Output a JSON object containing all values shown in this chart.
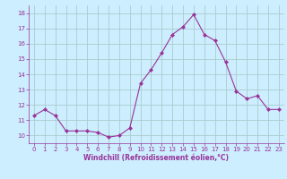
{
  "x": [
    0,
    1,
    2,
    3,
    4,
    5,
    6,
    7,
    8,
    9,
    10,
    11,
    12,
    13,
    14,
    15,
    16,
    17,
    18,
    19,
    20,
    21,
    22,
    23
  ],
  "y": [
    11.3,
    11.7,
    11.3,
    10.3,
    10.3,
    10.3,
    10.2,
    9.9,
    10.0,
    10.5,
    13.4,
    14.3,
    15.4,
    16.6,
    17.1,
    17.9,
    16.6,
    16.2,
    14.8,
    12.9,
    12.4,
    12.6,
    11.7,
    11.7
  ],
  "line_color": "#993399",
  "marker": "D",
  "marker_size": 2,
  "bg_color": "#cceeff",
  "grid_color": "#aacccc",
  "xlabel": "Windchill (Refroidissement éolien,°C)",
  "xlabel_color": "#993399",
  "tick_color": "#993399",
  "label_fontsize": 5.0,
  "xlabel_fontsize": 5.5,
  "ylim": [
    9.5,
    18.5
  ],
  "xlim": [
    -0.5,
    23.5
  ],
  "yticks": [
    10,
    11,
    12,
    13,
    14,
    15,
    16,
    17,
    18
  ],
  "xticks": [
    0,
    1,
    2,
    3,
    4,
    5,
    6,
    7,
    8,
    9,
    10,
    11,
    12,
    13,
    14,
    15,
    16,
    17,
    18,
    19,
    20,
    21,
    22,
    23
  ]
}
